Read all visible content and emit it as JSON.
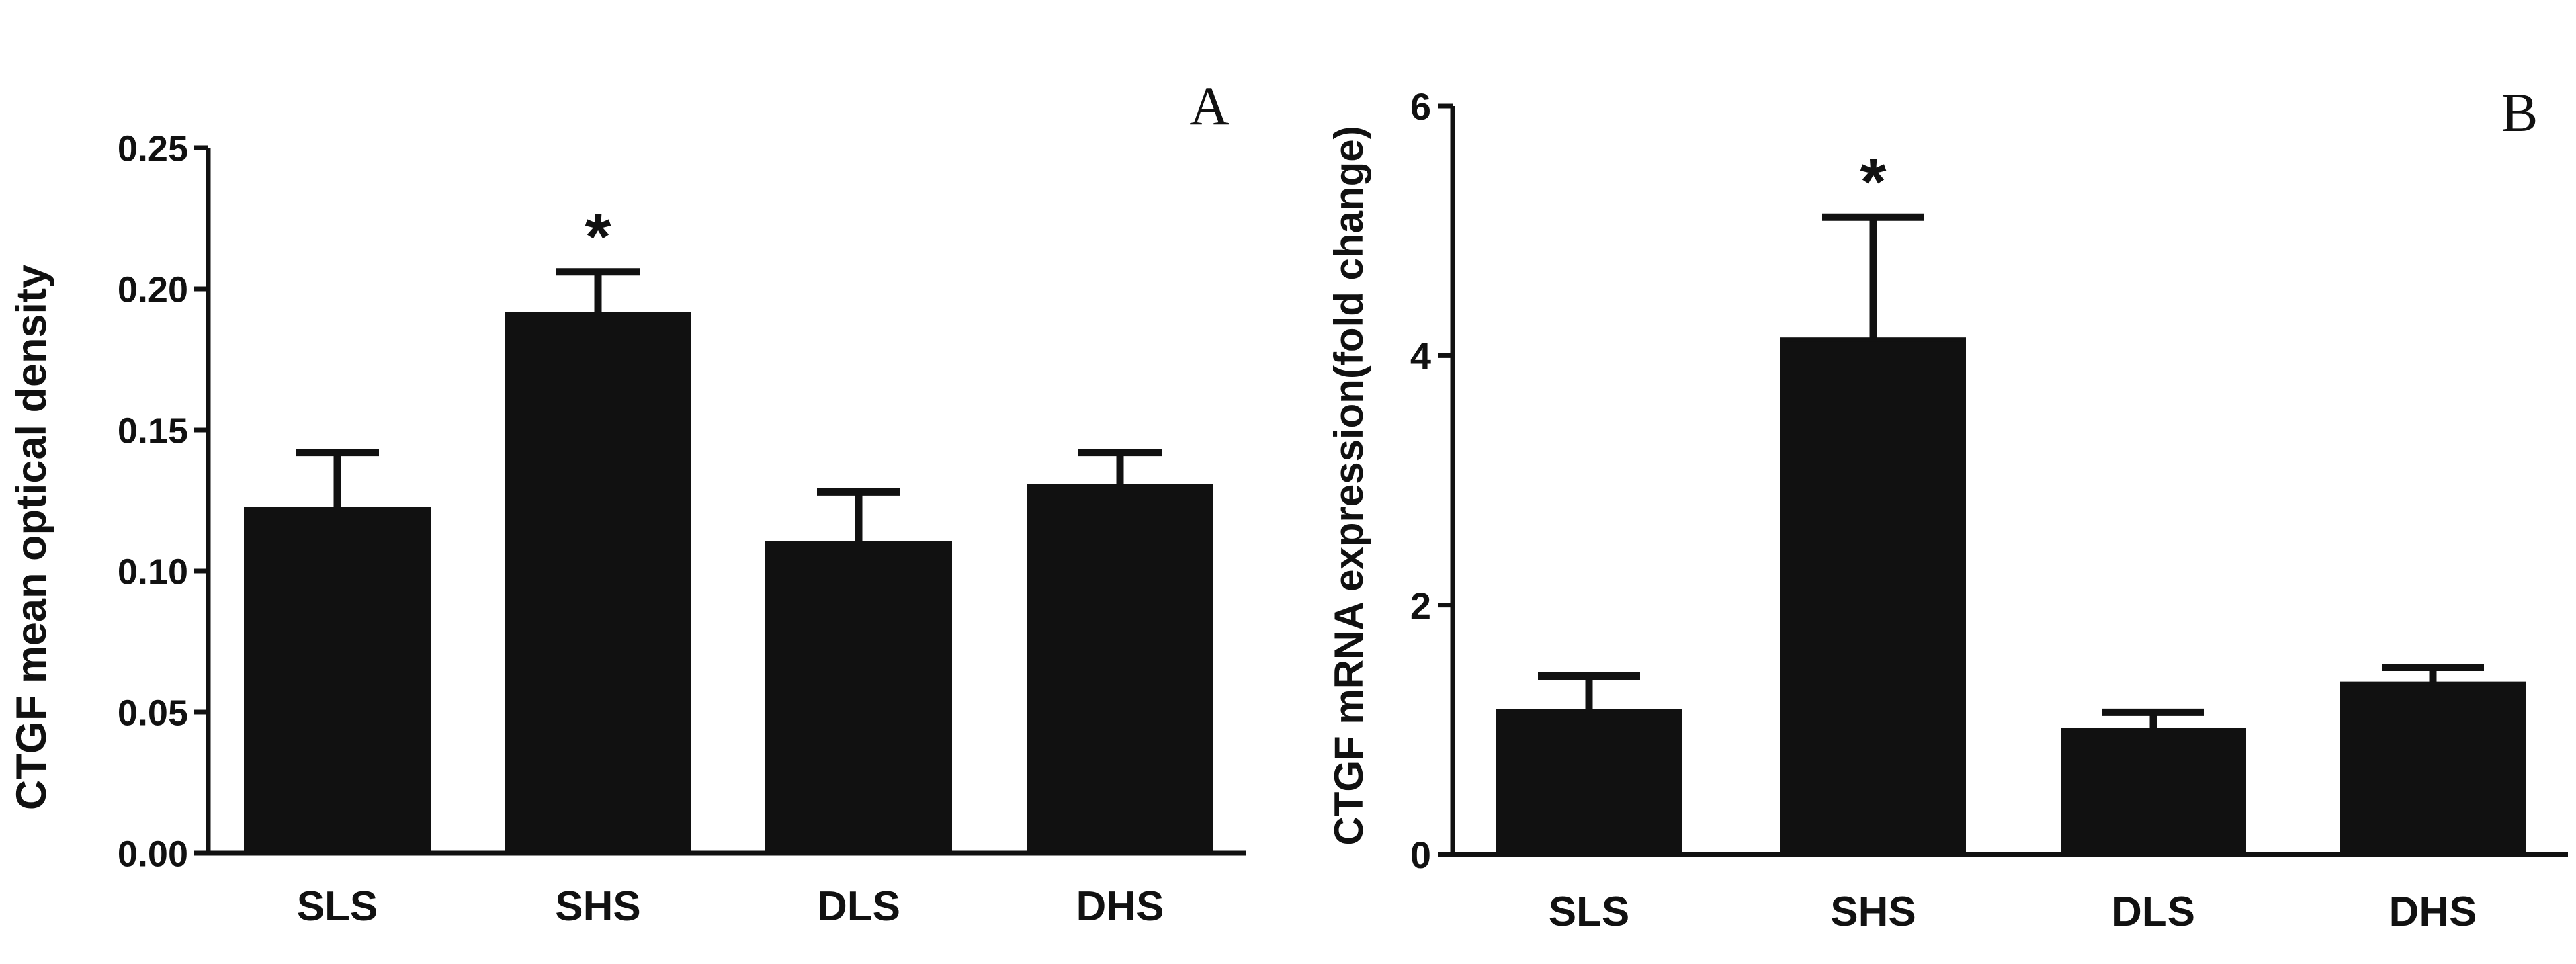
{
  "chart_data": [
    {
      "panel": "A",
      "type": "bar",
      "categories": [
        "SLS",
        "SHS",
        "DLS",
        "DHS"
      ],
      "values": [
        0.122,
        0.191,
        0.11,
        0.13
      ],
      "error": [
        0.02,
        0.015,
        0.018,
        0.012
      ],
      "significance": [
        "",
        "*",
        "",
        ""
      ],
      "ylabel": "CTGF mean optical density",
      "ylim": [
        0,
        0.25
      ],
      "yticks": [
        "0.00",
        "0.05",
        "0.10",
        "0.15",
        "0.20",
        "0.25"
      ],
      "bar_color": "#111111"
    },
    {
      "panel": "B",
      "type": "bar",
      "categories": [
        "SLS",
        "SHS",
        "DLS",
        "DHS"
      ],
      "values": [
        1.15,
        4.13,
        1.0,
        1.37
      ],
      "error": [
        0.28,
        0.98,
        0.14,
        0.13
      ],
      "significance": [
        "",
        "*",
        "",
        ""
      ],
      "ylabel": "CTGF mRNA expression(fold change)",
      "ylim": [
        0,
        6
      ],
      "yticks": [
        "0",
        "2",
        "4",
        "6"
      ],
      "bar_color": "#111111"
    }
  ]
}
